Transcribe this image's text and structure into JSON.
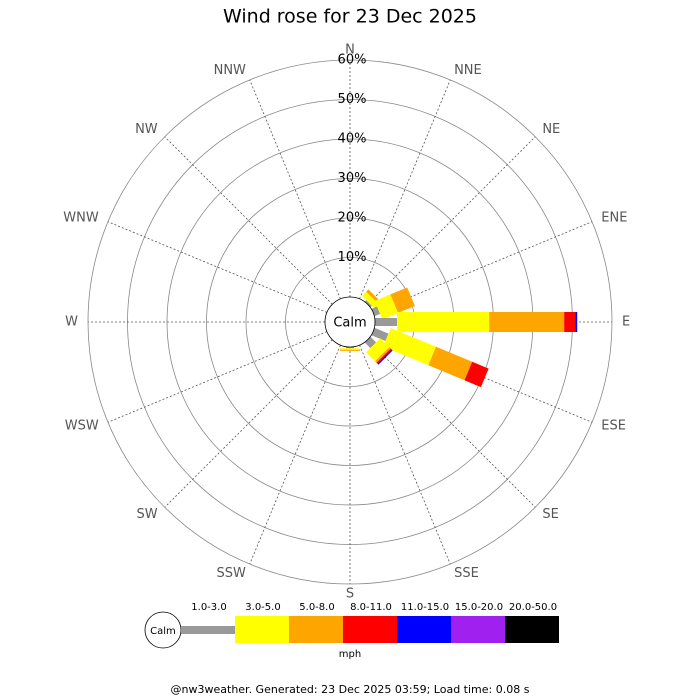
{
  "chart_data": {
    "type": "windrose",
    "title": "Wind rose for 23 Dec 2025",
    "calm_label": "Calm",
    "categories": [
      "N",
      "NNE",
      "NE",
      "ENE",
      "E",
      "ESE",
      "SE",
      "SSE",
      "S",
      "SSW",
      "SW",
      "WSW",
      "W",
      "WNW",
      "NW",
      "NNW"
    ],
    "rlim": [
      0,
      60
    ],
    "rticks": [
      {
        "value": 10,
        "label": "10%"
      },
      {
        "value": 20,
        "label": "20%"
      },
      {
        "value": 30,
        "label": "30%"
      },
      {
        "value": 40,
        "label": "40%"
      },
      {
        "value": 50,
        "label": "50%"
      },
      {
        "value": 60,
        "label": "60%"
      }
    ],
    "series": [
      {
        "name": "1.0-3.0",
        "color": "#999999",
        "values": [
          0,
          0,
          0.5,
          1.5,
          5.6,
          3.8,
          2,
          0,
          0.3,
          0,
          0,
          0,
          0,
          0,
          0,
          0
        ]
      },
      {
        "name": "3.0-5.0",
        "color": "#ffff00",
        "values": [
          0,
          0,
          1.5,
          4.3,
          23.3,
          12.4,
          3.2,
          0,
          0.4,
          0,
          0,
          0,
          0,
          0,
          0,
          0
        ]
      },
      {
        "name": "5.0-8.0",
        "color": "#ffa500",
        "values": [
          0,
          0,
          0.8,
          4.6,
          19,
          9.9,
          0.5,
          0,
          0.3,
          0,
          0,
          0,
          0,
          0,
          0,
          0
        ]
      },
      {
        "name": "8.0-11.0",
        "color": "#ff0000",
        "values": [
          0,
          0,
          0,
          0,
          2.8,
          4.5,
          0.4,
          0,
          0,
          0,
          0,
          0,
          0,
          0,
          0,
          0
        ]
      },
      {
        "name": "11.0-15.0",
        "color": "#0000ff",
        "values": [
          0,
          0,
          0,
          0,
          0.5,
          0,
          0.3,
          0,
          0,
          0,
          0,
          0,
          0,
          0,
          0,
          0
        ]
      },
      {
        "name": "15.0-20.0",
        "color": "#a020f0",
        "values": [
          0,
          0,
          0,
          0,
          0,
          0,
          0,
          0,
          0,
          0,
          0,
          0,
          0,
          0,
          0,
          0
        ]
      },
      {
        "name": "20.0-50.0",
        "color": "#000000",
        "values": [
          0,
          0,
          0,
          0,
          0,
          0,
          0,
          0,
          0,
          0,
          0,
          0,
          0,
          0,
          0,
          0
        ]
      }
    ],
    "unit": "mph",
    "footer": "@nw3weather. Generated: 23 Dec 2025 03:59; Load time: 0.08 s"
  }
}
